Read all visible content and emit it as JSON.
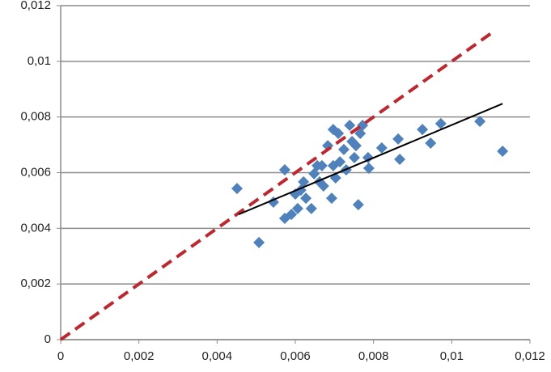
{
  "chart_data": {
    "type": "scatter",
    "xlim": [
      0,
      0.012
    ],
    "xticks": [
      0,
      {
        "value": 0.002,
        "label": "0,002"
      },
      {
        "value": 0.004,
        "label": "0,004"
      },
      {
        "value": 0.006,
        "label": "0,006"
      },
      {
        "value": 0.008,
        "label": "0,008"
      },
      {
        "value": 0.01,
        "label": "0,01"
      },
      {
        "value": 0.012,
        "label": "0,012"
      }
    ],
    "ylim": [
      0,
      0.012
    ],
    "yticks": [
      0,
      {
        "value": 0.002,
        "label": "0,002"
      },
      {
        "value": 0.004,
        "label": "0,004"
      },
      {
        "value": 0.006,
        "label": "0,006"
      },
      {
        "value": 0.008,
        "label": "0,008"
      },
      {
        "value": 0.01,
        "label": "0,01"
      },
      {
        "value": 0.012,
        "label": "0,012"
      }
    ],
    "grid": true,
    "series": [
      {
        "mode": "markers",
        "color": "#4f81bd",
        "x": [
          0.00451,
          0.00507,
          0.00544,
          0.00573,
          0.00573,
          0.0059,
          0.006,
          0.00606,
          0.00614,
          0.00621,
          0.00627,
          0.00641,
          0.00648,
          0.00656,
          0.00662,
          0.00668,
          0.00672,
          0.00683,
          0.00693,
          0.00697,
          0.00697,
          0.00703,
          0.0071,
          0.00714,
          0.00724,
          0.0073,
          0.00739,
          0.00745,
          0.00751,
          0.00755,
          0.00761,
          0.00766,
          0.00772,
          0.00786,
          0.00788,
          0.00821,
          0.00863,
          0.00867,
          0.00925,
          0.00946,
          0.00972,
          0.01072,
          0.0113
        ],
        "values": [
          0.00543,
          0.00349,
          0.00494,
          0.0061,
          0.00436,
          0.0045,
          0.00523,
          0.00471,
          0.00537,
          0.00567,
          0.00508,
          0.00471,
          0.00596,
          0.00625,
          0.00567,
          0.00625,
          0.00552,
          0.00697,
          0.00508,
          0.00755,
          0.00625,
          0.00581,
          0.00741,
          0.00639,
          0.00683,
          0.0061,
          0.0077,
          0.00712,
          0.00654,
          0.00697,
          0.00485,
          0.00741,
          0.0077,
          0.00654,
          0.00616,
          0.00689,
          0.00721,
          0.00648,
          0.00755,
          0.00706,
          0.00776,
          0.00784,
          0.00677
        ]
      },
      {
        "mode": "line",
        "color": "#c0262d",
        "dash": true,
        "x": [
          0,
          0.011
        ],
        "values": [
          0,
          0.011
        ]
      },
      {
        "mode": "line",
        "color": "#000000",
        "dash": false,
        "x": [
          0.00455,
          0.0113
        ],
        "values": [
          0.0045,
          0.00848
        ]
      }
    ]
  }
}
